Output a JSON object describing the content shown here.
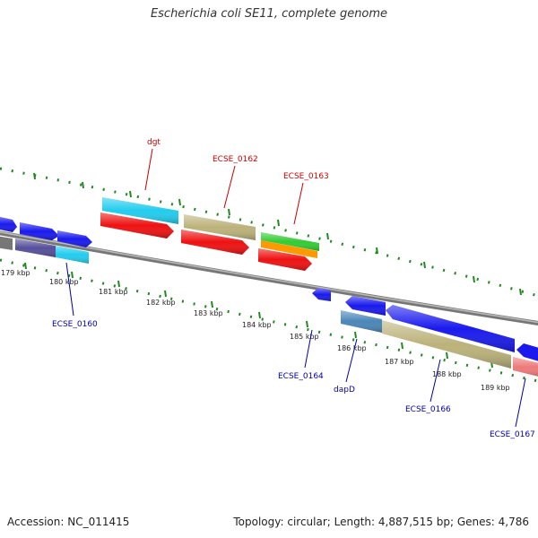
{
  "title": "Escherichia coli SE11, complete genome",
  "accession": "Accession: NC_011415",
  "topology": "Topology: circular; Length: 4,887,515 bp; Genes: 4,786",
  "colors": {
    "backbone": "#8a8a8a",
    "forward_label": "#cc0000",
    "reverse_label": "#0000aa",
    "ticks": "#228822",
    "blue": "#1a1aee",
    "cyan": "#22ccee",
    "red": "#ee1111",
    "khaki": "#bbb27a",
    "green": "#33cc33",
    "orange": "#ff9900",
    "steelblue": "#4a86b8",
    "slate": "#55509a",
    "pink": "#ee7a7a",
    "gray": "#888888"
  },
  "kbp_labels": [
    "179 kbp",
    "180 kbp",
    "181 kbp",
    "182 kbp",
    "183 kbp",
    "184 kbp",
    "185 kbp",
    "186 kbp",
    "187 kbp",
    "188 kbp",
    "189 kbp"
  ],
  "gene_labels": {
    "forward": [
      "dgt",
      "ECSE_0162",
      "ECSE_0163"
    ],
    "reverse": [
      "ECSE_0160",
      "ECSE_0164",
      "dapD",
      "ECSE_0166",
      "ECSE_0167"
    ]
  }
}
